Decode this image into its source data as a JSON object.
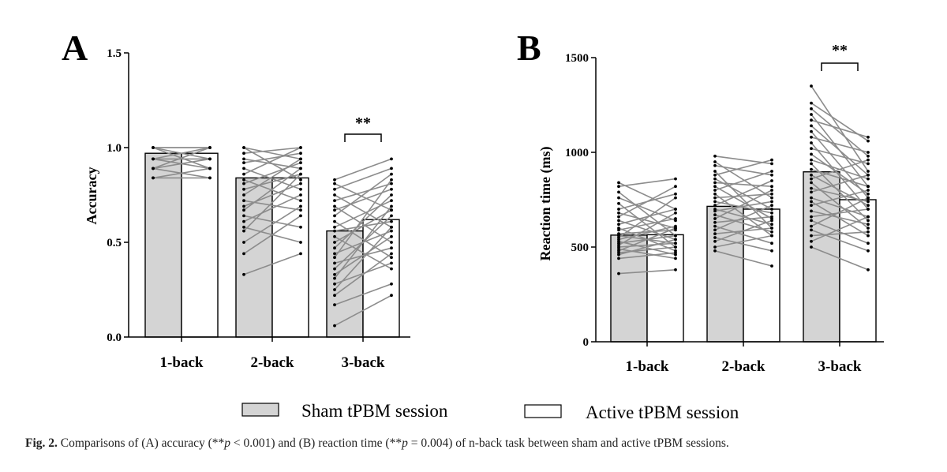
{
  "colors": {
    "sham_fill": "#d4d4d4",
    "active_fill": "#ffffff",
    "bar_stroke": "#000000",
    "line_color": "#8c8c8c",
    "dot_color": "#000000"
  },
  "legend": {
    "sham_label": "Sham tPBM session",
    "active_label": "Active tPBM session"
  },
  "caption": {
    "label": "Fig. 2.",
    "text_1": " Comparisons of (A) accuracy (**",
    "p1_symbol": "p",
    "p1_value": " < 0.001) and (B) reaction time (**",
    "p2_symbol": "p",
    "p2_value": " = 0.004) of n-back task between sham and active tPBM sessions."
  },
  "chart_data": [
    {
      "panel": "A",
      "type": "bar",
      "ylabel": "Accuracy",
      "xlabel": "",
      "ylim": [
        0,
        1.5
      ],
      "yticks": [
        0,
        0.5,
        1,
        1.5
      ],
      "ytick_labels": [
        "0.0",
        "0.5",
        "1.0",
        "1.5"
      ],
      "categories": [
        "1-back",
        "2-back",
        "3-back"
      ],
      "series": [
        {
          "name": "Sham tPBM session",
          "values": [
            0.97,
            0.84,
            0.56
          ]
        },
        {
          "name": "Active tPBM session",
          "values": [
            0.97,
            0.84,
            0.62
          ]
        }
      ],
      "significance": [
        {
          "category": "3-back",
          "label": "**"
        }
      ],
      "pairs": [
        [
          [
            1.0,
            1.0
          ],
          [
            1.0,
            1.0
          ],
          [
            1.0,
            0.94
          ],
          [
            0.94,
            1.0
          ],
          [
            0.94,
            0.94
          ],
          [
            1.0,
            0.89
          ],
          [
            0.89,
            1.0
          ],
          [
            0.94,
            0.89
          ],
          [
            0.89,
            0.94
          ],
          [
            0.89,
            0.84
          ],
          [
            0.84,
            0.89
          ],
          [
            0.84,
            0.84
          ]
        ],
        [
          [
            1.0,
            0.94
          ],
          [
            1.0,
            0.83
          ],
          [
            0.97,
            1.0
          ],
          [
            0.94,
            0.89
          ],
          [
            0.92,
            0.97
          ],
          [
            0.89,
            0.78
          ],
          [
            0.86,
            1.0
          ],
          [
            0.83,
            0.72
          ],
          [
            0.81,
            0.92
          ],
          [
            0.78,
            0.86
          ],
          [
            0.75,
            0.94
          ],
          [
            0.72,
            0.67
          ],
          [
            0.69,
            0.81
          ],
          [
            0.67,
            0.89
          ],
          [
            0.64,
            0.58
          ],
          [
            0.61,
            0.75
          ],
          [
            0.58,
            0.5
          ],
          [
            0.56,
            0.86
          ],
          [
            0.5,
            0.69
          ],
          [
            0.44,
            0.64
          ],
          [
            0.33,
            0.44
          ]
        ],
        [
          [
            0.83,
            0.94
          ],
          [
            0.81,
            0.67
          ],
          [
            0.78,
            0.89
          ],
          [
            0.75,
            0.58
          ],
          [
            0.72,
            0.81
          ],
          [
            0.69,
            0.5
          ],
          [
            0.67,
            0.78
          ],
          [
            0.64,
            0.86
          ],
          [
            0.61,
            0.42
          ],
          [
            0.58,
            0.72
          ],
          [
            0.56,
            0.61
          ],
          [
            0.53,
            0.36
          ],
          [
            0.5,
            0.67
          ],
          [
            0.47,
            0.75
          ],
          [
            0.44,
            0.56
          ],
          [
            0.42,
            0.83
          ],
          [
            0.39,
            0.47
          ],
          [
            0.36,
            0.64
          ],
          [
            0.33,
            0.53
          ],
          [
            0.31,
            0.69
          ],
          [
            0.28,
            0.39
          ],
          [
            0.25,
            0.58
          ],
          [
            0.22,
            0.44
          ],
          [
            0.17,
            0.28
          ],
          [
            0.06,
            0.22
          ]
        ]
      ]
    },
    {
      "panel": "B",
      "type": "bar",
      "ylabel": "Reaction time (ms)",
      "xlabel": "",
      "ylim": [
        0,
        1500
      ],
      "yticks": [
        0,
        500,
        1000,
        1500
      ],
      "ytick_labels": [
        "0",
        "500",
        "1000",
        "1500"
      ],
      "categories": [
        "1-back",
        "2-back",
        "3-back"
      ],
      "series": [
        {
          "name": "Sham tPBM session",
          "values": [
            563,
            715,
            897
          ]
        },
        {
          "name": "Active tPBM session",
          "values": [
            565,
            700,
            750
          ]
        }
      ],
      "significance": [
        {
          "category": "3-back",
          "label": "**"
        }
      ],
      "pairs": [
        [
          [
            840,
            700
          ],
          [
            820,
            860
          ],
          [
            790,
            560
          ],
          [
            760,
            640
          ],
          [
            730,
            500
          ],
          [
            700,
            780
          ],
          [
            680,
            600
          ],
          [
            660,
            820
          ],
          [
            640,
            540
          ],
          [
            620,
            700
          ],
          [
            600,
            480
          ],
          [
            590,
            650
          ],
          [
            570,
            590
          ],
          [
            560,
            520
          ],
          [
            550,
            760
          ],
          [
            540,
            610
          ],
          [
            530,
            460
          ],
          [
            520,
            560
          ],
          [
            510,
            680
          ],
          [
            500,
            520
          ],
          [
            490,
            440
          ],
          [
            480,
            600
          ],
          [
            470,
            500
          ],
          [
            460,
            540
          ],
          [
            440,
            470
          ],
          [
            360,
            380
          ]
        ],
        [
          [
            980,
            940
          ],
          [
            950,
            760
          ],
          [
            930,
            880
          ],
          [
            900,
            600
          ],
          [
            880,
            960
          ],
          [
            860,
            700
          ],
          [
            840,
            820
          ],
          [
            820,
            650
          ],
          [
            800,
            900
          ],
          [
            780,
            560
          ],
          [
            760,
            780
          ],
          [
            740,
            680
          ],
          [
            720,
            850
          ],
          [
            700,
            620
          ],
          [
            690,
            740
          ],
          [
            670,
            580
          ],
          [
            650,
            800
          ],
          [
            630,
            660
          ],
          [
            610,
            520
          ],
          [
            590,
            720
          ],
          [
            570,
            600
          ],
          [
            550,
            480
          ],
          [
            530,
            640
          ],
          [
            500,
            560
          ],
          [
            480,
            400
          ]
        ],
        [
          [
            1350,
            900
          ],
          [
            1260,
            1060
          ],
          [
            1230,
            980
          ],
          [
            1200,
            820
          ],
          [
            1170,
            1080
          ],
          [
            1140,
            880
          ],
          [
            1110,
            760
          ],
          [
            1080,
            1000
          ],
          [
            1050,
            700
          ],
          [
            1020,
            940
          ],
          [
            990,
            780
          ],
          [
            960,
            860
          ],
          [
            940,
            640
          ],
          [
            910,
            820
          ],
          [
            880,
            720
          ],
          [
            860,
            960
          ],
          [
            840,
            600
          ],
          [
            810,
            740
          ],
          [
            790,
            880
          ],
          [
            760,
            660
          ],
          [
            740,
            560
          ],
          [
            720,
            800
          ],
          [
            690,
            620
          ],
          [
            660,
            700
          ],
          [
            640,
            520
          ],
          [
            610,
            760
          ],
          [
            590,
            480
          ],
          [
            560,
            580
          ],
          [
            530,
            660
          ],
          [
            500,
            380
          ]
        ]
      ]
    }
  ]
}
